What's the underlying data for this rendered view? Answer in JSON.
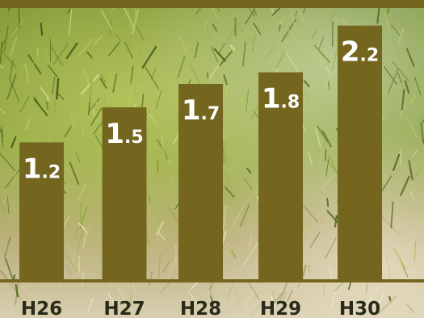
{
  "colors": {
    "bar": "#74661e",
    "top_band": "#74661e",
    "value_text": "#ffffff",
    "category_text": "#2a2a1a",
    "background_photo": "grass-and-shrubs-photo"
  },
  "chart_data": {
    "type": "bar",
    "categories": [
      "H26",
      "H27",
      "H28",
      "H29",
      "H30"
    ],
    "values": [
      1.2,
      1.5,
      1.7,
      1.8,
      2.2
    ],
    "value_labels": [
      {
        "int": "1",
        "dec": ".2"
      },
      {
        "int": "1",
        "dec": ".5"
      },
      {
        "int": "1",
        "dec": ".7"
      },
      {
        "int": "1",
        "dec": ".8"
      },
      {
        "int": "2",
        "dec": ".2"
      }
    ],
    "title": "",
    "xlabel": "",
    "ylabel": "",
    "ylim": [
      0,
      2.35
    ],
    "grid": false,
    "legend": "none"
  }
}
